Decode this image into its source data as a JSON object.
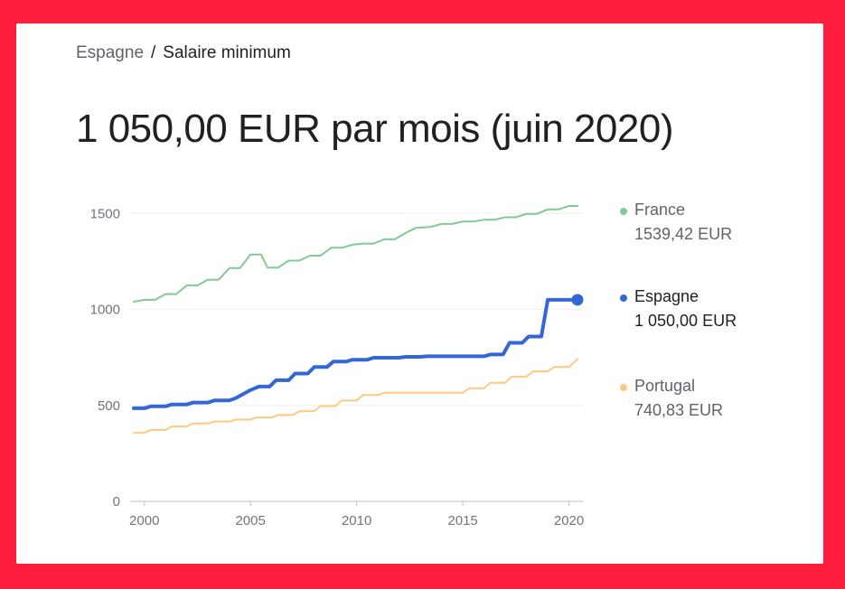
{
  "breadcrumb": {
    "parent": "Espagne",
    "separator": "/",
    "current": "Salaire minimum"
  },
  "headline": "1 050,00 EUR par mois (juin 2020)",
  "legend": [
    {
      "name": "France",
      "value": "1539,42 EUR",
      "color": "#81c995"
    },
    {
      "name": "Espagne",
      "value": "1 050,00 EUR",
      "color": "#3367d6"
    },
    {
      "name": "Portugal",
      "value": "740,83 EUR",
      "color": "#fdc980"
    }
  ],
  "chart_data": {
    "type": "line",
    "title": "",
    "xlabel": "",
    "ylabel": "",
    "x_ticks": [
      "2000",
      "2005",
      "2010",
      "2015",
      "2020"
    ],
    "y_ticks": [
      "0",
      "500",
      "1000",
      "1500"
    ],
    "xlim": [
      1999.5,
      2020.7
    ],
    "ylim": [
      0,
      1600
    ],
    "grid": true,
    "legend_position": "right",
    "series": [
      {
        "name": "France",
        "color": "#81c995",
        "highlighted": false,
        "points": [
          [
            1999.5,
            1040
          ],
          [
            2000.0,
            1050
          ],
          [
            2000.5,
            1050
          ],
          [
            2001.0,
            1080
          ],
          [
            2001.5,
            1080
          ],
          [
            2002.0,
            1125
          ],
          [
            2002.5,
            1125
          ],
          [
            2003.0,
            1155
          ],
          [
            2003.5,
            1155
          ],
          [
            2004.0,
            1215
          ],
          [
            2004.5,
            1215
          ],
          [
            2005.0,
            1286
          ],
          [
            2005.5,
            1286
          ],
          [
            2005.8,
            1218
          ],
          [
            2006.3,
            1218
          ],
          [
            2006.8,
            1254
          ],
          [
            2007.3,
            1254
          ],
          [
            2007.8,
            1280
          ],
          [
            2008.3,
            1280
          ],
          [
            2008.8,
            1321
          ],
          [
            2009.3,
            1321
          ],
          [
            2009.8,
            1337
          ],
          [
            2010.3,
            1343
          ],
          [
            2010.8,
            1343
          ],
          [
            2011.3,
            1365
          ],
          [
            2011.8,
            1365
          ],
          [
            2012.3,
            1398
          ],
          [
            2012.8,
            1425
          ],
          [
            2013.5,
            1430
          ],
          [
            2014.0,
            1445
          ],
          [
            2014.5,
            1445
          ],
          [
            2015.0,
            1458
          ],
          [
            2015.5,
            1458
          ],
          [
            2016.0,
            1467
          ],
          [
            2016.5,
            1467
          ],
          [
            2017.0,
            1480
          ],
          [
            2017.5,
            1480
          ],
          [
            2018.0,
            1498
          ],
          [
            2018.5,
            1498
          ],
          [
            2019.0,
            1521
          ],
          [
            2019.5,
            1521
          ],
          [
            2020.0,
            1539
          ],
          [
            2020.4,
            1539
          ]
        ]
      },
      {
        "name": "Espagne",
        "color": "#3367d6",
        "highlighted": true,
        "points": [
          [
            1999.5,
            485
          ],
          [
            2000.0,
            485
          ],
          [
            2000.3,
            495
          ],
          [
            2001.0,
            495
          ],
          [
            2001.3,
            505
          ],
          [
            2002.0,
            505
          ],
          [
            2002.3,
            515
          ],
          [
            2003.0,
            515
          ],
          [
            2003.3,
            526
          ],
          [
            2004.0,
            526
          ],
          [
            2004.3,
            538
          ],
          [
            2005.0,
            580
          ],
          [
            2005.4,
            598
          ],
          [
            2005.9,
            598
          ],
          [
            2006.2,
            631
          ],
          [
            2006.8,
            631
          ],
          [
            2007.1,
            666
          ],
          [
            2007.7,
            666
          ],
          [
            2008.0,
            700
          ],
          [
            2008.6,
            700
          ],
          [
            2008.9,
            728
          ],
          [
            2009.5,
            728
          ],
          [
            2009.8,
            738
          ],
          [
            2010.5,
            738
          ],
          [
            2010.8,
            748
          ],
          [
            2012.0,
            748
          ],
          [
            2012.3,
            753
          ],
          [
            2013.0,
            753
          ],
          [
            2013.3,
            756
          ],
          [
            2016.0,
            756
          ],
          [
            2016.3,
            765
          ],
          [
            2016.9,
            765
          ],
          [
            2017.2,
            826
          ],
          [
            2017.8,
            826
          ],
          [
            2018.1,
            859
          ],
          [
            2018.7,
            859
          ],
          [
            2019.0,
            1050
          ],
          [
            2020.4,
            1050
          ]
        ]
      },
      {
        "name": "Portugal",
        "color": "#fdc980",
        "highlighted": false,
        "points": [
          [
            1999.5,
            357
          ],
          [
            2000.0,
            357
          ],
          [
            2000.3,
            372
          ],
          [
            2001.0,
            372
          ],
          [
            2001.3,
            390
          ],
          [
            2002.0,
            390
          ],
          [
            2002.3,
            406
          ],
          [
            2003.0,
            406
          ],
          [
            2003.3,
            416
          ],
          [
            2004.0,
            416
          ],
          [
            2004.3,
            426
          ],
          [
            2005.0,
            426
          ],
          [
            2005.3,
            437
          ],
          [
            2006.0,
            437
          ],
          [
            2006.3,
            450
          ],
          [
            2007.0,
            450
          ],
          [
            2007.3,
            470
          ],
          [
            2008.0,
            470
          ],
          [
            2008.3,
            497
          ],
          [
            2009.0,
            497
          ],
          [
            2009.3,
            525
          ],
          [
            2010.0,
            525
          ],
          [
            2010.3,
            554
          ],
          [
            2011.0,
            554
          ],
          [
            2011.3,
            566
          ],
          [
            2015.0,
            566
          ],
          [
            2015.3,
            589
          ],
          [
            2016.0,
            589
          ],
          [
            2016.3,
            618
          ],
          [
            2017.0,
            618
          ],
          [
            2017.3,
            650
          ],
          [
            2018.0,
            650
          ],
          [
            2018.3,
            677
          ],
          [
            2019.0,
            677
          ],
          [
            2019.3,
            700
          ],
          [
            2020.0,
            700
          ],
          [
            2020.4,
            741
          ]
        ]
      }
    ]
  }
}
